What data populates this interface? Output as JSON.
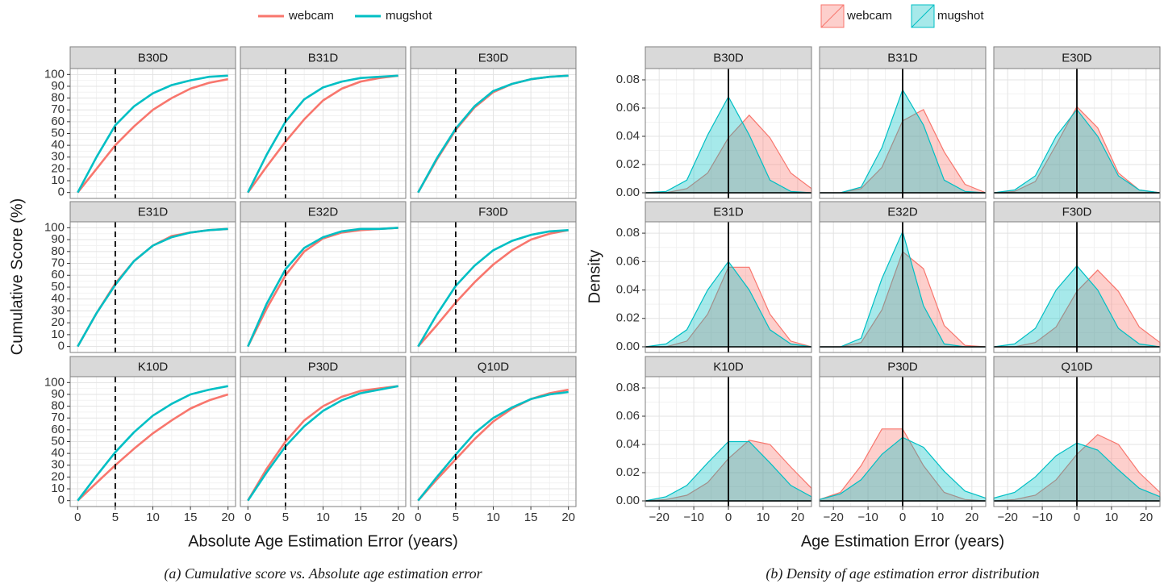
{
  "chart_data": [
    {
      "type": "line",
      "legend": "top",
      "grid": true,
      "series": [
        {
          "name": "webcam",
          "color": "#f8766d"
        },
        {
          "name": "mugshot",
          "color": "#00bfc4"
        }
      ],
      "x": [
        0,
        2.5,
        5,
        7.5,
        10,
        12.5,
        15,
        17.5,
        20
      ],
      "facets": [
        {
          "label": "B30D",
          "values": [
            [
              0,
              20,
              40,
              56,
              70,
              80,
              88,
              93,
              96
            ],
            [
              0,
              30,
              57,
              73,
              84,
              91,
              95,
              98,
              99
            ]
          ]
        },
        {
          "label": "B31D",
          "values": [
            [
              0,
              22,
              43,
              62,
              78,
              88,
              94,
              97,
              99
            ],
            [
              0,
              32,
              60,
              79,
              89,
              94,
              97,
              98,
              99
            ]
          ]
        },
        {
          "label": "E30D",
          "values": [
            [
              0,
              28,
              53,
              72,
              85,
              92,
              96,
              98,
              99
            ],
            [
              0,
              29,
              54,
              73,
              86,
              92,
              96,
              98,
              99
            ]
          ]
        },
        {
          "label": "E31D",
          "values": [
            [
              0,
              28,
              53,
              72,
              85,
              93,
              96,
              98,
              99
            ],
            [
              0,
              28,
              52,
              72,
              85,
              92,
              96,
              98,
              99
            ]
          ]
        },
        {
          "label": "E32D",
          "values": [
            [
              0,
              32,
              60,
              80,
              91,
              96,
              98,
              99,
              100
            ],
            [
              0,
              36,
              65,
              83,
              92,
              97,
              99,
              99,
              100
            ]
          ]
        },
        {
          "label": "F30D",
          "values": [
            [
              0,
              18,
              37,
              54,
              69,
              81,
              90,
              95,
              98
            ],
            [
              0,
              27,
              51,
              68,
              81,
              89,
              94,
              97,
              98
            ]
          ]
        },
        {
          "label": "K10D",
          "values": [
            [
              0,
              15,
              30,
              44,
              57,
              68,
              78,
              85,
              90
            ],
            [
              0,
              21,
              41,
              58,
              72,
              82,
              90,
              94,
              97
            ]
          ]
        },
        {
          "label": "P30D",
          "values": [
            [
              0,
              27,
              50,
              68,
              80,
              88,
              93,
              95,
              97
            ],
            [
              0,
              24,
              46,
              63,
              76,
              85,
              91,
              94,
              97
            ]
          ]
        },
        {
          "label": "Q10D",
          "values": [
            [
              0,
              18,
              35,
              52,
              67,
              78,
              86,
              91,
              94
            ],
            [
              0,
              20,
              39,
              57,
              70,
              79,
              86,
              90,
              92
            ]
          ]
        }
      ],
      "xlim": [
        -1,
        21
      ],
      "xticks": [
        0,
        5,
        10,
        15,
        20
      ],
      "ylim": [
        -5,
        105
      ],
      "yticks": [
        0,
        10,
        20,
        30,
        40,
        50,
        60,
        70,
        80,
        90,
        100
      ],
      "reference_line": 5,
      "reference_style": "dashed",
      "xlabel": "Absolute Age Estimation Error (years)",
      "ylabel": "Cumulative Score (%)",
      "caption": "(a) Cumulative score vs. Absolute age estimation error"
    },
    {
      "type": "density",
      "legend": "top",
      "grid": true,
      "series": [
        {
          "name": "webcam",
          "color": "#f8766d"
        },
        {
          "name": "mugshot",
          "color": "#00bfc4"
        }
      ],
      "x": [
        -24,
        -18,
        -12,
        -6,
        0,
        6,
        12,
        18,
        24
      ],
      "facets": [
        {
          "label": "B30D",
          "values": [
            [
              0,
              0,
              0.003,
              0.014,
              0.039,
              0.055,
              0.039,
              0.014,
              0.003
            ],
            [
              0,
              0.001,
              0.009,
              0.041,
              0.068,
              0.041,
              0.009,
              0.001,
              0
            ]
          ]
        },
        {
          "label": "B31D",
          "values": [
            [
              0,
              0,
              0.003,
              0.018,
              0.051,
              0.059,
              0.029,
              0.006,
              0
            ],
            [
              0,
              0,
              0.004,
              0.032,
              0.073,
              0.048,
              0.009,
              0.001,
              0
            ]
          ]
        },
        {
          "label": "E30D",
          "values": [
            [
              0,
              0.001,
              0.008,
              0.034,
              0.061,
              0.046,
              0.014,
              0.002,
              0
            ],
            [
              0,
              0.002,
              0.012,
              0.04,
              0.059,
              0.04,
              0.012,
              0.002,
              0
            ]
          ]
        },
        {
          "label": "E31D",
          "values": [
            [
              0,
              0,
              0.004,
              0.023,
              0.056,
              0.056,
              0.023,
              0.004,
              0
            ],
            [
              0,
              0.002,
              0.012,
              0.04,
              0.06,
              0.04,
              0.012,
              0.002,
              0
            ]
          ]
        },
        {
          "label": "E32D",
          "values": [
            [
              0,
              0,
              0.003,
              0.026,
              0.067,
              0.055,
              0.015,
              0.001,
              0
            ],
            [
              0,
              0,
              0.006,
              0.048,
              0.081,
              0.029,
              0.002,
              0,
              0
            ]
          ]
        },
        {
          "label": "F30D",
          "values": [
            [
              0,
              0,
              0.003,
              0.014,
              0.039,
              0.054,
              0.039,
              0.014,
              0.003
            ],
            [
              0,
              0.002,
              0.013,
              0.04,
              0.057,
              0.04,
              0.013,
              0.002,
              0
            ]
          ]
        },
        {
          "label": "K10D",
          "values": [
            [
              0,
              0.001,
              0.004,
              0.013,
              0.03,
              0.043,
              0.04,
              0.024,
              0.009
            ],
            [
              0,
              0.003,
              0.011,
              0.027,
              0.042,
              0.042,
              0.027,
              0.011,
              0.003
            ]
          ]
        },
        {
          "label": "P30D",
          "values": [
            [
              0.001,
              0.006,
              0.025,
              0.051,
              0.051,
              0.025,
              0.006,
              0.001,
              0
            ],
            [
              0.001,
              0.005,
              0.015,
              0.033,
              0.045,
              0.038,
              0.021,
              0.007,
              0.002
            ]
          ]
        },
        {
          "label": "Q10D",
          "values": [
            [
              0,
              0.001,
              0.004,
              0.015,
              0.033,
              0.047,
              0.04,
              0.02,
              0.006
            ],
            [
              0.002,
              0.006,
              0.017,
              0.032,
              0.041,
              0.036,
              0.022,
              0.009,
              0.003
            ]
          ]
        }
      ],
      "xlim": [
        -24,
        24
      ],
      "xticks": [
        {
          "value": -20,
          "label": "−20"
        },
        {
          "value": -10,
          "label": "−10"
        },
        0,
        10,
        20
      ],
      "ylim": [
        -0.004,
        0.088
      ],
      "yticks": [
        {
          "value": 0,
          "label": "0.00"
        },
        {
          "value": 0.02,
          "label": "0.02"
        },
        {
          "value": 0.04,
          "label": "0.04"
        },
        {
          "value": 0.06,
          "label": "0.06"
        },
        {
          "value": 0.08,
          "label": "0.08"
        }
      ],
      "reference_line": 0,
      "reference_style": "solid",
      "xlabel": "Age Estimation Error (years)",
      "ylabel": "Density",
      "caption": "(b) Density of age estimation error distribution"
    }
  ]
}
